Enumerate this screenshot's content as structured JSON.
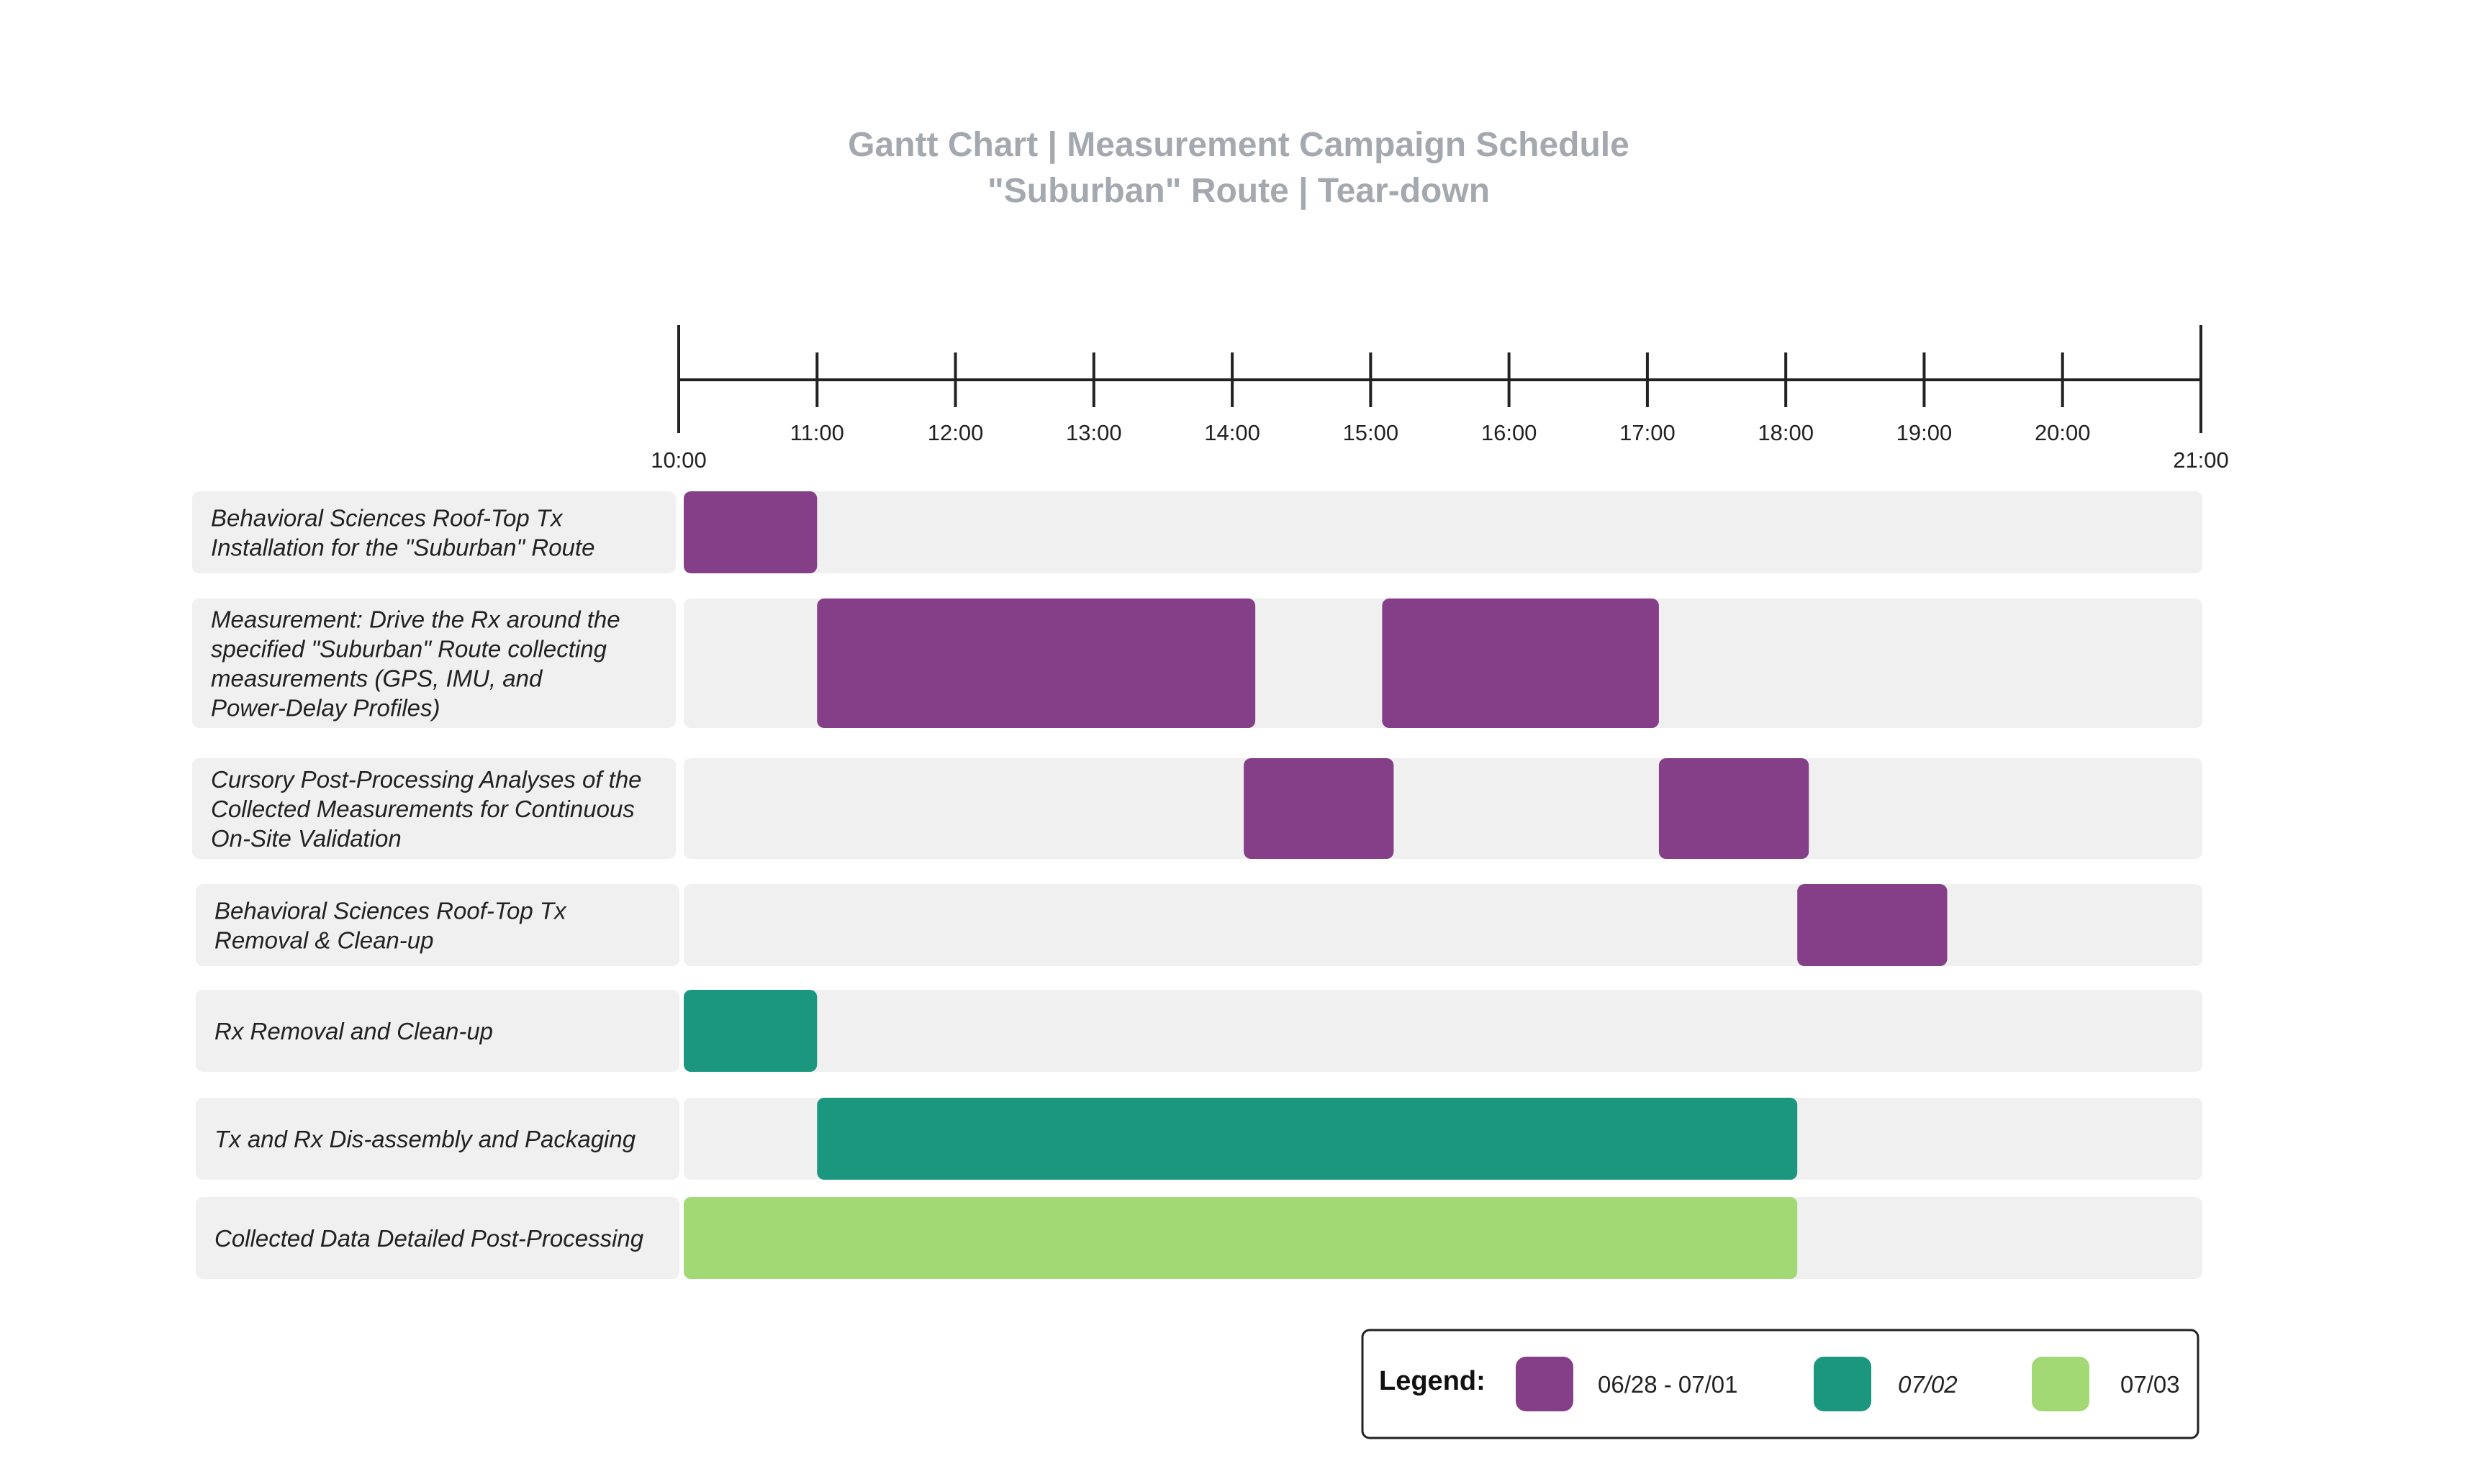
{
  "chart_data": {
    "type": "gantt",
    "title": [
      "Gantt Chart | Measurement Campaign Schedule",
      "\"Suburban\" Route | Tear-down"
    ],
    "x_axis": {
      "range": [
        "10:00",
        "21:00"
      ],
      "ticks": [
        "10:00",
        "11:00",
        "12:00",
        "13:00",
        "14:00",
        "15:00",
        "16:00",
        "17:00",
        "18:00",
        "19:00",
        "20:00",
        "21:00"
      ]
    },
    "tasks": [
      {
        "label_lines": [
          "Behavioral Sciences Roof-Top Tx",
          "Installation for the \"Suburban\" Route"
        ],
        "bars": [
          {
            "start": "10:00",
            "end": "11:00",
            "group": "06/28 - 07/01"
          }
        ]
      },
      {
        "label_lines": [
          "Measurement: Drive the Rx around the",
          "specified \"Suburban\" Route collecting",
          "measurements (GPS, IMU, and",
          "Power-Delay Profiles)"
        ],
        "bars": [
          {
            "start": "11:00",
            "end": "14:10",
            "group": "06/28 - 07/01"
          },
          {
            "start": "15:05",
            "end": "17:05",
            "group": "06/28 - 07/01"
          }
        ]
      },
      {
        "label_lines": [
          "Cursory Post-Processing Analyses of the",
          "Collected Measurements for Continuous",
          "On-Site Validation"
        ],
        "bars": [
          {
            "start": "14:05",
            "end": "15:10",
            "group": "06/28 - 07/01"
          },
          {
            "start": "17:05",
            "end": "18:10",
            "group": "06/28 - 07/01"
          }
        ]
      },
      {
        "label_lines": [
          "Behavioral Sciences Roof-Top Tx",
          "Removal & Clean-up"
        ],
        "bars": [
          {
            "start": "18:05",
            "end": "19:10",
            "group": "06/28 - 07/01"
          }
        ]
      },
      {
        "label_lines": [
          "Rx Removal and Clean-up"
        ],
        "bars": [
          {
            "start": "10:00",
            "end": "11:00",
            "group": "07/02"
          }
        ]
      },
      {
        "label_lines": [
          "Tx and Rx Dis-assembly and Packaging"
        ],
        "bars": [
          {
            "start": "11:00",
            "end": "18:05",
            "group": "07/02"
          }
        ]
      },
      {
        "label_lines": [
          "Collected Data Detailed Post-Processing"
        ],
        "bars": [
          {
            "start": "10:00",
            "end": "18:05",
            "group": "07/03"
          }
        ]
      }
    ],
    "legend": {
      "title": "Legend:",
      "placement": "bottom-right",
      "entries": [
        {
          "label": "06/28 - 07/01",
          "color": "#843f88"
        },
        {
          "label": "07/02",
          "color": "#1a977e"
        },
        {
          "label": "07/03",
          "color": "#a3d974"
        }
      ]
    },
    "colors": {
      "row_background": "#eff0ef",
      "title": "#a4a9b0",
      "axis": "#222222"
    }
  }
}
